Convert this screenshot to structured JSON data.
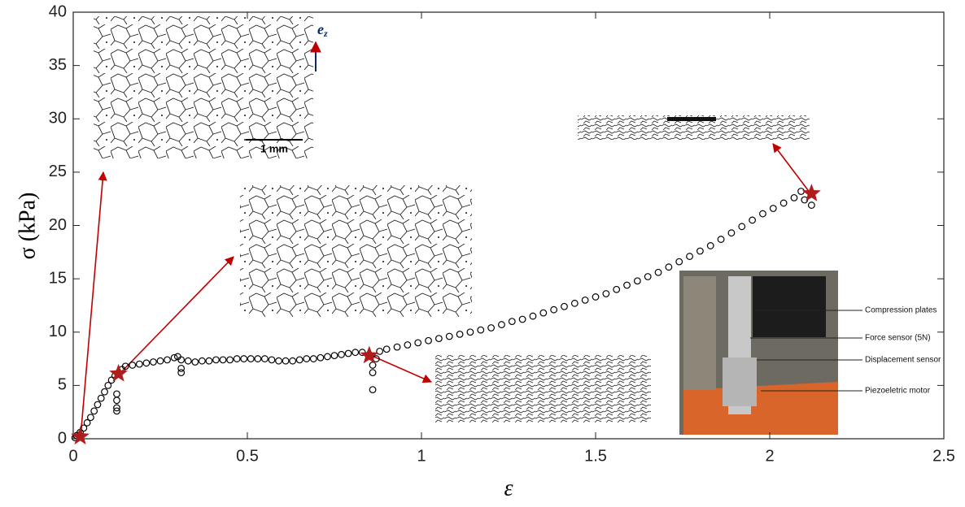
{
  "chart_data": {
    "type": "scatter",
    "xlabel": "ε",
    "ylabel": "σ (kPa)",
    "xlim": [
      0,
      2.5
    ],
    "ylim": [
      0,
      40
    ],
    "xticks": [
      0,
      0.5,
      1,
      1.5,
      2,
      2.5
    ],
    "yticks": [
      0,
      5,
      10,
      15,
      20,
      25,
      30,
      35,
      40
    ],
    "grid": false,
    "series": [
      {
        "color": "#000000",
        "marker": "circle",
        "x": [
          0.005,
          0.01,
          0.02,
          0.03,
          0.04,
          0.05,
          0.06,
          0.07,
          0.08,
          0.09,
          0.1,
          0.11,
          0.12,
          0.13,
          0.125,
          0.125,
          0.125,
          0.125,
          0.14,
          0.15,
          0.17,
          0.19,
          0.21,
          0.23,
          0.25,
          0.27,
          0.29,
          0.3,
          0.31,
          0.31,
          0.31,
          0.33,
          0.35,
          0.37,
          0.39,
          0.41,
          0.43,
          0.45,
          0.47,
          0.49,
          0.51,
          0.53,
          0.55,
          0.57,
          0.59,
          0.61,
          0.63,
          0.65,
          0.67,
          0.69,
          0.71,
          0.73,
          0.75,
          0.77,
          0.79,
          0.81,
          0.83,
          0.85,
          0.86,
          0.86,
          0.86,
          0.87,
          0.88,
          0.9,
          0.93,
          0.96,
          0.99,
          1.02,
          1.05,
          1.08,
          1.11,
          1.14,
          1.17,
          1.2,
          1.23,
          1.26,
          1.29,
          1.32,
          1.35,
          1.38,
          1.41,
          1.44,
          1.47,
          1.5,
          1.53,
          1.56,
          1.59,
          1.62,
          1.65,
          1.68,
          1.71,
          1.74,
          1.77,
          1.8,
          1.83,
          1.86,
          1.89,
          1.92,
          1.95,
          1.98,
          2.01,
          2.04,
          2.07,
          2.09,
          2.1,
          2.12
        ],
        "values": [
          0.1,
          0.3,
          0.6,
          1.0,
          1.5,
          2.0,
          2.6,
          3.2,
          3.8,
          4.4,
          5.0,
          5.5,
          5.9,
          6.2,
          4.2,
          3.6,
          2.9,
          2.6,
          6.5,
          6.8,
          6.9,
          7.0,
          7.1,
          7.2,
          7.3,
          7.4,
          7.6,
          7.7,
          7.4,
          6.6,
          6.2,
          7.3,
          7.2,
          7.3,
          7.3,
          7.4,
          7.4,
          7.4,
          7.5,
          7.5,
          7.5,
          7.5,
          7.5,
          7.4,
          7.3,
          7.3,
          7.3,
          7.4,
          7.5,
          7.5,
          7.6,
          7.7,
          7.8,
          7.9,
          8.0,
          8.1,
          8.1,
          7.9,
          6.9,
          6.2,
          4.6,
          7.5,
          8.2,
          8.4,
          8.6,
          8.8,
          9.0,
          9.2,
          9.4,
          9.6,
          9.8,
          10.0,
          10.2,
          10.4,
          10.7,
          11.0,
          11.2,
          11.5,
          11.8,
          12.1,
          12.4,
          12.7,
          13.0,
          13.3,
          13.6,
          14.0,
          14.4,
          14.8,
          15.2,
          15.6,
          16.1,
          16.6,
          17.1,
          17.6,
          18.1,
          18.7,
          19.3,
          19.9,
          20.5,
          21.1,
          21.6,
          22.1,
          22.6,
          23.2,
          22.4,
          21.9
        ]
      },
      {
        "color": "#b01c1c",
        "marker": "star",
        "x": [
          0.02,
          0.13,
          0.85,
          2.12
        ],
        "values": [
          0.2,
          6.1,
          7.8,
          23.0
        ]
      }
    ],
    "scale_bar": "1 mm",
    "direction_label": {
      "base": "e",
      "sub": "z"
    },
    "annotations": [
      "Compression plates",
      "Force sensor (5N)",
      "Displacement sensor",
      "Piezoeletric motor"
    ]
  }
}
